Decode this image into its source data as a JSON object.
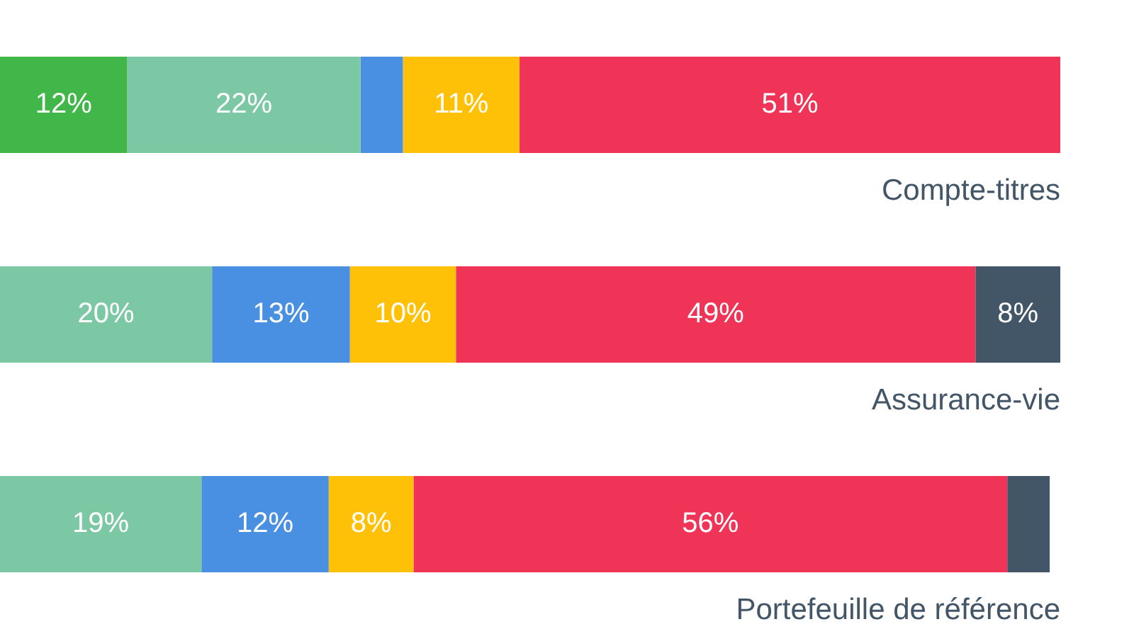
{
  "chart_data": {
    "type": "bar",
    "orientation": "horizontal",
    "stacked": true,
    "categories": [
      "Compte-titres",
      "Assurance-vie",
      "Portefeuille de référence"
    ],
    "xlim": [
      0,
      100
    ],
    "legend": false,
    "series": [
      {
        "color": "#41b649",
        "values": [
          12,
          null,
          null
        ],
        "value_labels": [
          "12%",
          null,
          null
        ]
      },
      {
        "color": "#7dc8a4",
        "values": [
          22,
          20,
          19
        ],
        "value_labels": [
          "22%",
          "20%",
          "19%"
        ]
      },
      {
        "color": "#4a90e2",
        "values": [
          4,
          13,
          12
        ],
        "value_labels": [
          null,
          "13%",
          "12%"
        ]
      },
      {
        "color": "#ffc107",
        "values": [
          11,
          10,
          8
        ],
        "value_labels": [
          "11%",
          "10%",
          "8%"
        ]
      },
      {
        "color": "#f03458",
        "values": [
          51,
          49,
          56
        ],
        "value_labels": [
          "51%",
          "49%",
          "56%"
        ]
      },
      {
        "color": "#435668",
        "values": [
          null,
          8,
          4
        ],
        "value_labels": [
          null,
          "8%",
          null
        ]
      }
    ]
  }
}
